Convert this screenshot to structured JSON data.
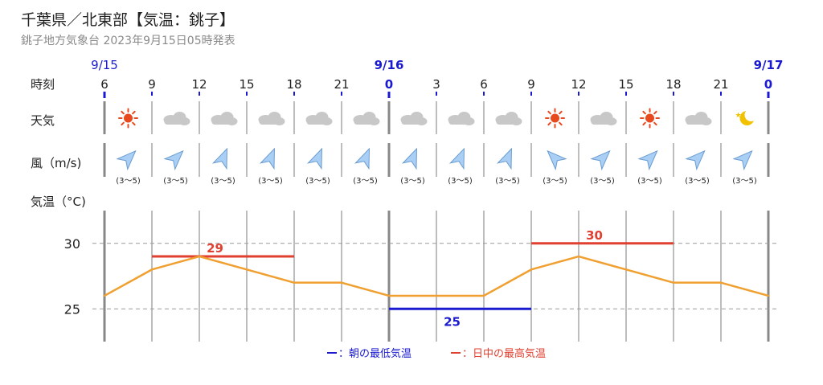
{
  "header": {
    "title": "千葉県／北東部【気温：銚子】",
    "subtitle": "銚子地方気象台 2023年9月15日05時発表"
  },
  "row_labels": {
    "time": "時刻",
    "weather": "天気",
    "wind": "風（m/s)",
    "temperature": "気温（°C)"
  },
  "legend": {
    "min_label": "：朝の最低気温",
    "max_label": "：日中の最高気温"
  },
  "colors": {
    "line": "#f0a030",
    "max_bar": "#e04030",
    "min_bar": "#1a1ad0",
    "date_blue": "#1a1ad0",
    "icon_sun": "#e84a20",
    "icon_cloud": "#c8c8c8",
    "icon_moon": "#f2c200",
    "wind_arrow": "#a9cff5"
  },
  "chart_data": {
    "type": "line",
    "x": [
      "6",
      "9",
      "12",
      "15",
      "18",
      "21",
      "0",
      "3",
      "6",
      "9",
      "12",
      "15",
      "18",
      "21",
      "0"
    ],
    "date_labels": [
      {
        "index": 0,
        "label": "9/15"
      },
      {
        "index": 6,
        "label": "9/16"
      },
      {
        "index": 14,
        "label": "9/17"
      }
    ],
    "temperature": [
      26,
      28,
      29,
      28,
      27,
      27,
      26,
      26,
      26,
      28,
      29,
      28,
      27,
      27,
      26
    ],
    "ylim": [
      22.5,
      32.5
    ],
    "yticks": [
      25,
      30
    ],
    "weather": [
      "sunny",
      "cloudy",
      "cloudy",
      "cloudy",
      "cloudy",
      "cloudy",
      "cloudy",
      "cloudy",
      "cloudy",
      "sunny",
      "cloudy",
      "sunny",
      "cloudy",
      "clear-night"
    ],
    "wind": {
      "speed_label": [
        "(3〜5)",
        "(3〜5)",
        "(3〜5)",
        "(3〜5)",
        "(3〜5)",
        "(3〜5)",
        "(3〜5)",
        "(3〜5)",
        "(3〜5)",
        "(3〜5)",
        "(3〜5)",
        "(3〜5)",
        "(3〜5)",
        "(3〜5)"
      ],
      "direction": [
        "NE",
        "NE",
        "NNE",
        "NNE",
        "NNE",
        "NNE",
        "NNE",
        "NNE",
        "NNE",
        "NW",
        "NE",
        "NE",
        "NE",
        "NE"
      ]
    },
    "max_temp": [
      {
        "from_index": 1,
        "to_index": 4,
        "value": 29
      },
      {
        "from_index": 9,
        "to_index": 12,
        "value": 30
      }
    ],
    "min_temp": [
      {
        "from_index": 6,
        "to_index": 9,
        "value": 25
      }
    ]
  }
}
